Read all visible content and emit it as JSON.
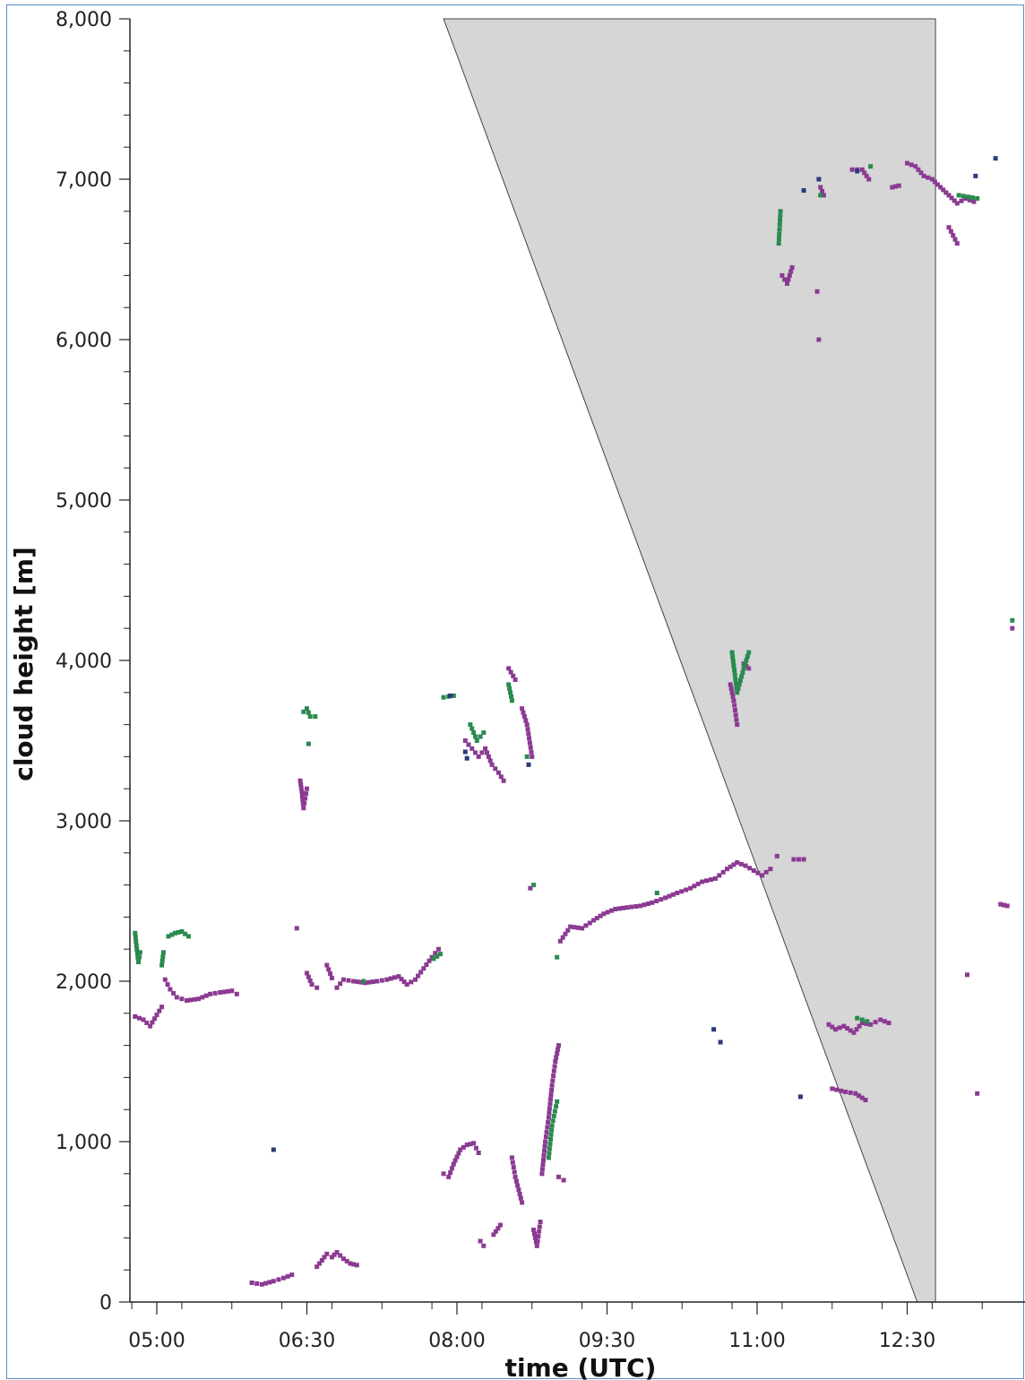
{
  "chart_data": {
    "type": "scatter",
    "xlabel": "time (UTC)",
    "ylabel": "cloud height [m]",
    "xlim": [
      "04:45",
      "14:00"
    ],
    "ylim": [
      0,
      8000
    ],
    "grid": false,
    "x_ticks": [
      "05:00",
      "06:30",
      "08:00",
      "09:30",
      "11:00",
      "12:30"
    ],
    "y_ticks": [
      "0",
      "1,000",
      "2,000",
      "3,000",
      "4,000",
      "5,000",
      "6,000",
      "7,000",
      "8,000"
    ],
    "colors": {
      "purple": "#8b3a92",
      "green": "#2a8a4e",
      "navy": "#2b3a7a",
      "shade": "#d6d6d6"
    },
    "shaded_region": {
      "description": "gray triangular region",
      "vertices": [
        [
          "07:52",
          8000
        ],
        [
          "12:47",
          8000
        ],
        [
          "12:47",
          0
        ],
        [
          "12:36",
          0
        ]
      ]
    },
    "series": [
      {
        "color_key": "purple",
        "segments": [
          [
            [
              "04:47",
              1780
            ],
            [
              "04:52",
              1760
            ],
            [
              "04:56",
              1720
            ],
            [
              "05:00",
              1790
            ],
            [
              "05:03",
              1840
            ]
          ],
          [
            [
              "05:05",
              2010
            ],
            [
              "05:08",
              1950
            ],
            [
              "05:12",
              1900
            ],
            [
              "05:18",
              1880
            ],
            [
              "05:25",
              1890
            ],
            [
              "05:32",
              1920
            ],
            [
              "05:38",
              1930
            ],
            [
              "05:45",
              1940
            ],
            [
              "05:48",
              1920
            ]
          ],
          [
            [
              "05:57",
              120
            ],
            [
              "06:03",
              110
            ],
            [
              "06:10",
              130
            ],
            [
              "06:16",
              150
            ],
            [
              "06:21",
              170
            ]
          ],
          [
            [
              "06:24",
              2330
            ]
          ],
          [
            [
              "06:26",
              3250
            ],
            [
              "06:27",
              3180
            ],
            [
              "06:28",
              3080
            ],
            [
              "06:30",
              3200
            ]
          ],
          [
            [
              "06:30",
              2050
            ],
            [
              "06:33",
              1980
            ],
            [
              "06:36",
              1960
            ]
          ],
          [
            [
              "06:36",
              220
            ],
            [
              "06:39",
              260
            ],
            [
              "06:42",
              300
            ],
            [
              "06:45",
              280
            ],
            [
              "06:48",
              310
            ],
            [
              "06:52",
              270
            ],
            [
              "06:56",
              240
            ],
            [
              "07:00",
              230
            ]
          ],
          [
            [
              "06:42",
              2100
            ],
            [
              "06:45",
              2020
            ]
          ],
          [
            [
              "06:48",
              1960
            ],
            [
              "06:52",
              2010
            ],
            [
              "06:58",
              2000
            ],
            [
              "07:05",
              1990
            ],
            [
              "07:12",
              2000
            ],
            [
              "07:18",
              2010
            ],
            [
              "07:25",
              2030
            ],
            [
              "07:30",
              1980
            ],
            [
              "07:35",
              2010
            ],
            [
              "07:40",
              2080
            ],
            [
              "07:45",
              2150
            ],
            [
              "07:49",
              2200
            ]
          ],
          [
            [
              "07:52",
              800
            ],
            [
              "07:55",
              780
            ],
            [
              "07:58",
              860
            ],
            [
              "08:02",
              950
            ],
            [
              "08:06",
              980
            ],
            [
              "08:10",
              990
            ],
            [
              "08:13",
              930
            ]
          ],
          [
            [
              "08:05",
              3500
            ],
            [
              "08:09",
              3450
            ],
            [
              "08:13",
              3400
            ],
            [
              "08:17",
              3450
            ],
            [
              "08:21",
              3350
            ],
            [
              "08:25",
              3300
            ],
            [
              "08:28",
              3250
            ]
          ],
          [
            [
              "08:14",
              380
            ],
            [
              "08:16",
              350
            ]
          ],
          [
            [
              "08:22",
              420
            ],
            [
              "08:26",
              480
            ]
          ],
          [
            [
              "08:31",
              3950
            ],
            [
              "08:35",
              3880
            ]
          ],
          [
            [
              "08:33",
              900
            ],
            [
              "08:35",
              780
            ],
            [
              "08:37",
              700
            ],
            [
              "08:39",
              620
            ]
          ],
          [
            [
              "08:39",
              3700
            ],
            [
              "08:42",
              3600
            ],
            [
              "08:45",
              3400
            ]
          ],
          [
            [
              "08:44",
              2580
            ]
          ],
          [
            [
              "08:46",
              450
            ],
            [
              "08:48",
              350
            ],
            [
              "08:50",
              500
            ]
          ],
          [
            [
              "08:51",
              800
            ],
            [
              "08:53",
              1000
            ],
            [
              "08:55",
              1150
            ],
            [
              "08:57",
              1350
            ],
            [
              "08:59",
              1500
            ],
            [
              "09:01",
              1600
            ]
          ],
          [
            [
              "09:01",
              780
            ],
            [
              "09:04",
              760
            ]
          ],
          [
            [
              "09:02",
              2250
            ],
            [
              "09:08",
              2340
            ],
            [
              "09:15",
              2330
            ],
            [
              "09:22",
              2380
            ],
            [
              "09:28",
              2420
            ],
            [
              "09:35",
              2450
            ],
            [
              "09:42",
              2460
            ],
            [
              "09:50",
              2470
            ],
            [
              "09:57",
              2490
            ],
            [
              "10:05",
              2520
            ],
            [
              "10:12",
              2550
            ],
            [
              "10:20",
              2580
            ],
            [
              "10:27",
              2620
            ],
            [
              "10:35",
              2640
            ],
            [
              "10:42",
              2700
            ],
            [
              "10:48",
              2740
            ],
            [
              "10:53",
              2720
            ],
            [
              "10:58",
              2690
            ],
            [
              "11:03",
              2660
            ],
            [
              "11:08",
              2700
            ]
          ],
          [
            [
              "10:44",
              3850
            ],
            [
              "10:46",
              3750
            ],
            [
              "10:48",
              3600
            ]
          ],
          [
            [
              "10:52",
              3980
            ],
            [
              "10:55",
              3950
            ]
          ],
          [
            [
              "11:12",
              2780
            ]
          ],
          [
            [
              "11:15",
              6400
            ],
            [
              "11:18",
              6350
            ],
            [
              "11:21",
              6450
            ]
          ],
          [
            [
              "11:22",
              2760
            ],
            [
              "11:28",
              2760
            ]
          ],
          [
            [
              "11:36",
              6300
            ]
          ],
          [
            [
              "11:37",
              6000
            ]
          ],
          [
            [
              "11:38",
              6950
            ],
            [
              "11:40",
              6900
            ]
          ],
          [
            [
              "11:43",
              1730
            ],
            [
              "11:47",
              1700
            ],
            [
              "11:52",
              1720
            ],
            [
              "11:58",
              1680
            ],
            [
              "12:03",
              1740
            ],
            [
              "12:08",
              1730
            ],
            [
              "12:14",
              1760
            ],
            [
              "12:19",
              1740
            ]
          ],
          [
            [
              "11:45",
              1330
            ],
            [
              "11:53",
              1310
            ],
            [
              "11:59",
              1300
            ],
            [
              "12:05",
              1260
            ]
          ],
          [
            [
              "11:57",
              7060
            ],
            [
              "12:03",
              7060
            ],
            [
              "12:07",
              7000
            ]
          ],
          [
            [
              "12:21",
              6950
            ],
            [
              "12:25",
              6960
            ]
          ],
          [
            [
              "12:30",
              7100
            ],
            [
              "12:35",
              7080
            ],
            [
              "12:40",
              7020
            ],
            [
              "12:45",
              7000
            ],
            [
              "12:50",
              6950
            ],
            [
              "12:55",
              6900
            ],
            [
              "13:00",
              6850
            ],
            [
              "13:05",
              6880
            ],
            [
              "13:10",
              6860
            ]
          ],
          [
            [
              "12:55",
              6700
            ],
            [
              "13:00",
              6600
            ]
          ],
          [
            [
              "13:06",
              2040
            ]
          ],
          [
            [
              "13:12",
              1300
            ]
          ],
          [
            [
              "13:26",
              2480
            ],
            [
              "13:30",
              2470
            ]
          ],
          [
            [
              "13:33",
              4200
            ]
          ]
        ]
      },
      {
        "color_key": "green",
        "segments": [
          [
            [
              "04:47",
              2300
            ],
            [
              "04:48",
              2200
            ],
            [
              "04:49",
              2120
            ],
            [
              "04:50",
              2180
            ]
          ],
          [
            [
              "05:03",
              2100
            ],
            [
              "05:04",
              2180
            ]
          ],
          [
            [
              "05:07",
              2280
            ],
            [
              "05:11",
              2300
            ],
            [
              "05:15",
              2310
            ],
            [
              "05:19",
              2280
            ]
          ],
          [
            [
              "06:28",
              3680
            ],
            [
              "06:30",
              3700
            ],
            [
              "06:32",
              3650
            ]
          ],
          [
            [
              "06:35",
              3650
            ]
          ],
          [
            [
              "06:31",
              3480
            ]
          ],
          [
            [
              "07:04",
              2000
            ]
          ],
          [
            [
              "07:46",
              2140
            ],
            [
              "07:50",
              2170
            ]
          ],
          [
            [
              "07:52",
              3770
            ],
            [
              "07:58",
              3780
            ]
          ],
          [
            [
              "08:08",
              3600
            ],
            [
              "08:12",
              3500
            ],
            [
              "08:16",
              3550
            ]
          ],
          [
            [
              "08:31",
              3850
            ],
            [
              "08:33",
              3750
            ]
          ],
          [
            [
              "08:42",
              3400
            ]
          ],
          [
            [
              "08:55",
              900
            ],
            [
              "08:57",
              1100
            ],
            [
              "09:00",
              1250
            ]
          ],
          [
            [
              "09:00",
              2150
            ]
          ],
          [
            [
              "08:46",
              2600
            ]
          ],
          [
            [
              "10:00",
              2550
            ]
          ],
          [
            [
              "10:45",
              4050
            ],
            [
              "10:48",
              3800
            ],
            [
              "10:52",
              3950
            ],
            [
              "10:55",
              4050
            ]
          ],
          [
            [
              "11:13",
              6600
            ],
            [
              "11:14",
              6800
            ]
          ],
          [
            [
              "11:38",
              6900
            ]
          ],
          [
            [
              "12:00",
              1770
            ],
            [
              "12:06",
              1750
            ]
          ],
          [
            [
              "12:08",
              7080
            ]
          ],
          [
            [
              "13:01",
              6900
            ],
            [
              "13:12",
              6880
            ]
          ],
          [
            [
              "13:33",
              4250
            ]
          ]
        ]
      },
      {
        "color_key": "navy",
        "segments": [
          [
            [
              "06:10",
              950
            ]
          ],
          [
            [
              "07:56",
              3780
            ]
          ],
          [
            [
              "08:05",
              3430
            ],
            [
              "08:06",
              3390
            ]
          ],
          [
            [
              "08:43",
              3350
            ]
          ],
          [
            [
              "10:34",
              1700
            ]
          ],
          [
            [
              "10:38",
              1620
            ]
          ],
          [
            [
              "11:26",
              1280
            ]
          ],
          [
            [
              "11:28",
              6930
            ]
          ],
          [
            [
              "11:37",
              7000
            ]
          ],
          [
            [
              "12:00",
              7050
            ]
          ],
          [
            [
              "13:11",
              7020
            ]
          ],
          [
            [
              "13:23",
              7130
            ]
          ]
        ]
      }
    ]
  }
}
